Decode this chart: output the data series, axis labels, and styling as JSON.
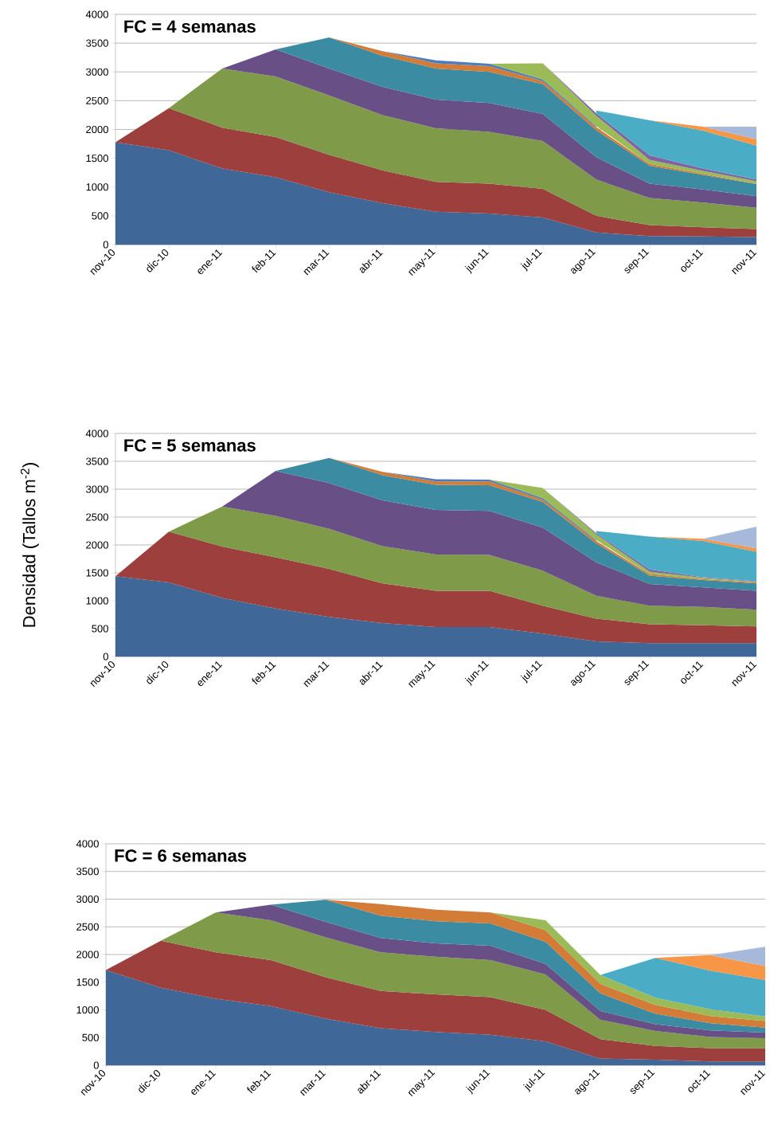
{
  "chart_data": [
    {
      "type": "area",
      "stacked": true,
      "title": "FC = 4 semanas",
      "grid": "y",
      "ylim": [
        0,
        4000
      ],
      "yticks": [
        0,
        500,
        1000,
        1500,
        2000,
        2500,
        3000,
        3500,
        4000
      ],
      "categories": [
        "nov-10",
        "dic-10",
        "ene-11",
        "feb-11",
        "mar-11",
        "abr-11",
        "may-11",
        "jun-11",
        "jul-11",
        "ago-11",
        "sep-11",
        "oct-11",
        "nov-11"
      ],
      "series": [
        {
          "color": "#3F6797",
          "values": [
            1780,
            1640,
            1320,
            1170,
            910,
            720,
            570,
            540,
            470,
            210,
            150,
            140,
            130
          ]
        },
        {
          "color": "#9C3F3D",
          "values": [
            0,
            730,
            710,
            700,
            650,
            570,
            520,
            520,
            500,
            290,
            190,
            160,
            140
          ]
        },
        {
          "color": "#7F9A48",
          "values": [
            null,
            0,
            1030,
            1050,
            1030,
            960,
            930,
            900,
            830,
            630,
            470,
            430,
            370
          ]
        },
        {
          "color": "#684F86",
          "values": [
            null,
            null,
            0,
            470,
            470,
            490,
            500,
            500,
            470,
            390,
            250,
            230,
            200
          ]
        },
        {
          "color": "#3B8CA3",
          "values": [
            null,
            null,
            null,
            0,
            540,
            540,
            540,
            540,
            520,
            470,
            310,
            250,
            210
          ]
        },
        {
          "color": "#D27C37",
          "values": [
            null,
            null,
            null,
            null,
            0,
            80,
            90,
            100,
            50,
            50,
            30,
            20,
            10
          ]
        },
        {
          "color": "#4A7CBF",
          "values": [
            null,
            null,
            null,
            null,
            null,
            0,
            50,
            40,
            30,
            20,
            null,
            null,
            null
          ]
        },
        {
          "color": "#9BBB59",
          "values": [
            null,
            null,
            null,
            null,
            null,
            null,
            null,
            0,
            280,
            180,
            70,
            50,
            40
          ]
        },
        {
          "color": "#8064A2",
          "values": [
            null,
            null,
            null,
            null,
            null,
            null,
            null,
            null,
            0,
            40,
            80,
            40,
            30
          ]
        },
        {
          "color": "#4BACC6",
          "values": [
            null,
            null,
            null,
            null,
            null,
            null,
            null,
            null,
            null,
            50,
            610,
            660,
            590
          ]
        },
        {
          "color": "#F79646",
          "values": [
            null,
            null,
            null,
            null,
            null,
            null,
            null,
            null,
            null,
            null,
            0,
            70,
            110
          ]
        },
        {
          "color": "#A7B9DA",
          "values": [
            null,
            null,
            null,
            null,
            null,
            null,
            null,
            null,
            null,
            null,
            null,
            0,
            220
          ]
        }
      ]
    },
    {
      "type": "area",
      "stacked": true,
      "title": "FC = 5 semanas",
      "ylabel": "Densidad (Tallos m$^{-2}$)",
      "grid": "y",
      "ylim": [
        0,
        4000
      ],
      "yticks": [
        0,
        500,
        1000,
        1500,
        2000,
        2500,
        3000,
        3500,
        4000
      ],
      "categories": [
        "nov-10",
        "dic-10",
        "ene-11",
        "feb-11",
        "mar-11",
        "abr-11",
        "may-11",
        "jun-11",
        "jul-11",
        "ago-11",
        "sep-11",
        "oct-11",
        "nov-11"
      ],
      "series": [
        {
          "color": "#3F6797",
          "values": [
            1440,
            1330,
            1050,
            860,
            710,
            600,
            530,
            530,
            410,
            270,
            240,
            240,
            240
          ]
        },
        {
          "color": "#9C3F3D",
          "values": [
            0,
            910,
            920,
            920,
            860,
            710,
            650,
            650,
            500,
            410,
            340,
            320,
            300
          ]
        },
        {
          "color": "#7F9A48",
          "values": [
            null,
            0,
            720,
            740,
            720,
            670,
            650,
            640,
            630,
            410,
            330,
            330,
            300
          ]
        },
        {
          "color": "#684F86",
          "values": [
            null,
            null,
            0,
            810,
            820,
            820,
            800,
            790,
            770,
            600,
            390,
            350,
            340
          ]
        },
        {
          "color": "#3B8CA3",
          "values": [
            null,
            null,
            null,
            0,
            450,
            450,
            450,
            460,
            460,
            340,
            150,
            130,
            130
          ]
        },
        {
          "color": "#D27C37",
          "values": [
            null,
            null,
            null,
            null,
            0,
            60,
            60,
            70,
            40,
            40,
            30,
            20,
            20
          ]
        },
        {
          "color": "#4A7CBF",
          "values": [
            null,
            null,
            null,
            null,
            null,
            0,
            40,
            30,
            30,
            20,
            null,
            null,
            null
          ]
        },
        {
          "color": "#9BBB59",
          "values": [
            null,
            null,
            null,
            null,
            null,
            null,
            null,
            0,
            180,
            100,
            40,
            20,
            10
          ]
        },
        {
          "color": "#8064A2",
          "values": [
            null,
            null,
            null,
            null,
            null,
            null,
            null,
            null,
            0,
            20,
            40,
            10,
            10
          ]
        },
        {
          "color": "#4BACC6",
          "values": [
            null,
            null,
            null,
            null,
            null,
            null,
            null,
            null,
            null,
            40,
            590,
            650,
            530
          ]
        },
        {
          "color": "#F79646",
          "values": [
            null,
            null,
            null,
            null,
            null,
            null,
            null,
            null,
            null,
            null,
            0,
            40,
            60
          ]
        },
        {
          "color": "#A7B9DA",
          "values": [
            null,
            null,
            null,
            null,
            null,
            null,
            null,
            null,
            null,
            null,
            null,
            0,
            390
          ]
        }
      ]
    },
    {
      "type": "area",
      "stacked": true,
      "title": "FC = 6 semanas",
      "grid": "y",
      "ylim": [
        0,
        4000
      ],
      "yticks": [
        0,
        500,
        1000,
        1500,
        2000,
        2500,
        3000,
        3500,
        4000
      ],
      "categories": [
        "nov-10",
        "dic-10",
        "ene-11",
        "feb-11",
        "mar-11",
        "abr-11",
        "may-11",
        "jun-11",
        "jul-11",
        "ago-11",
        "sep-11",
        "oct-11",
        "nov-11"
      ],
      "series": [
        {
          "color": "#3F6797",
          "values": [
            1720,
            1400,
            1200,
            1070,
            840,
            670,
            600,
            550,
            430,
            120,
            100,
            70,
            70
          ]
        },
        {
          "color": "#9C3F3D",
          "values": [
            0,
            850,
            840,
            830,
            750,
            670,
            680,
            680,
            570,
            350,
            250,
            240,
            240
          ]
        },
        {
          "color": "#7F9A48",
          "values": [
            null,
            0,
            720,
            720,
            720,
            700,
            680,
            670,
            640,
            350,
            270,
            200,
            180
          ]
        },
        {
          "color": "#684F86",
          "values": [
            null,
            null,
            0,
            280,
            280,
            260,
            240,
            260,
            190,
            160,
            120,
            120,
            100
          ]
        },
        {
          "color": "#3B8CA3",
          "values": [
            null,
            null,
            null,
            0,
            400,
            400,
            400,
            400,
            400,
            320,
            190,
            130,
            90
          ]
        },
        {
          "color": "#D27C37",
          "values": [
            null,
            null,
            null,
            null,
            0,
            210,
            210,
            200,
            210,
            170,
            160,
            130,
            120
          ]
        },
        {
          "color": "#9BBB59",
          "values": [
            null,
            null,
            null,
            null,
            null,
            null,
            null,
            0,
            180,
            160,
            130,
            120,
            80
          ]
        },
        {
          "color": "#4BACC6",
          "values": [
            null,
            null,
            null,
            null,
            null,
            null,
            null,
            null,
            null,
            0,
            720,
            700,
            660
          ]
        },
        {
          "color": "#F79646",
          "values": [
            null,
            null,
            null,
            null,
            null,
            null,
            null,
            null,
            null,
            null,
            0,
            280,
            250
          ]
        },
        {
          "color": "#A7B9DA",
          "values": [
            null,
            null,
            null,
            null,
            null,
            null,
            null,
            null,
            null,
            null,
            null,
            0,
            350
          ]
        }
      ]
    }
  ]
}
